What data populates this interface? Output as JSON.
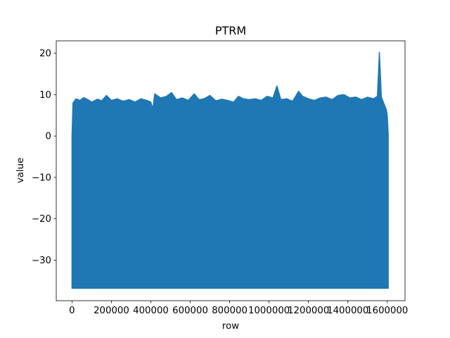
{
  "chart_data": {
    "type": "line",
    "title": "PTRM",
    "xlabel": "row",
    "ylabel": "value",
    "xlim": [
      -80000,
      1690000
    ],
    "ylim": [
      -39.8,
      23.0
    ],
    "x_ticks": [
      0,
      200000,
      400000,
      600000,
      800000,
      1000000,
      1200000,
      1400000,
      1600000
    ],
    "y_ticks": [
      -30,
      -20,
      -10,
      0,
      10,
      20
    ],
    "grid": false,
    "legend": "none",
    "series": [
      {
        "color": "#1f77b4",
        "x_range": [
          0,
          1605000
        ],
        "band_min": -36.8,
        "upper_envelope": [
          [
            0,
            0.0
          ],
          [
            5000,
            8.0
          ],
          [
            20000,
            9.0
          ],
          [
            40000,
            8.6
          ],
          [
            60000,
            9.3
          ],
          [
            80000,
            8.8
          ],
          [
            100000,
            8.2
          ],
          [
            130000,
            8.9
          ],
          [
            150000,
            8.5
          ],
          [
            175000,
            9.8
          ],
          [
            200000,
            8.6
          ],
          [
            230000,
            9.0
          ],
          [
            260000,
            8.4
          ],
          [
            290000,
            8.8
          ],
          [
            320000,
            8.2
          ],
          [
            350000,
            9.0
          ],
          [
            380000,
            8.6
          ],
          [
            400000,
            8.2
          ],
          [
            410000,
            6.5
          ],
          [
            420000,
            10.2
          ],
          [
            450000,
            9.2
          ],
          [
            480000,
            9.6
          ],
          [
            505000,
            10.5
          ],
          [
            530000,
            8.8
          ],
          [
            560000,
            9.2
          ],
          [
            590000,
            8.6
          ],
          [
            620000,
            10.2
          ],
          [
            645000,
            8.8
          ],
          [
            670000,
            9.0
          ],
          [
            700000,
            9.8
          ],
          [
            730000,
            8.5
          ],
          [
            760000,
            8.9
          ],
          [
            790000,
            8.6
          ],
          [
            820000,
            8.2
          ],
          [
            845000,
            9.6
          ],
          [
            870000,
            9.0
          ],
          [
            900000,
            8.8
          ],
          [
            930000,
            9.0
          ],
          [
            960000,
            8.6
          ],
          [
            990000,
            9.6
          ],
          [
            1020000,
            9.2
          ],
          [
            1040000,
            12.1
          ],
          [
            1060000,
            8.8
          ],
          [
            1090000,
            9.0
          ],
          [
            1120000,
            8.4
          ],
          [
            1150000,
            10.8
          ],
          [
            1170000,
            9.6
          ],
          [
            1200000,
            9.0
          ],
          [
            1230000,
            8.6
          ],
          [
            1260000,
            9.2
          ],
          [
            1290000,
            9.4
          ],
          [
            1320000,
            8.8
          ],
          [
            1350000,
            9.8
          ],
          [
            1380000,
            10.0
          ],
          [
            1410000,
            9.2
          ],
          [
            1440000,
            9.4
          ],
          [
            1470000,
            8.8
          ],
          [
            1500000,
            9.4
          ],
          [
            1530000,
            9.0
          ],
          [
            1550000,
            9.6
          ],
          [
            1560000,
            20.2
          ],
          [
            1570000,
            9.4
          ],
          [
            1585000,
            7.6
          ],
          [
            1595000,
            6.4
          ],
          [
            1600000,
            5.0
          ],
          [
            1605000,
            0.2
          ]
        ]
      }
    ]
  }
}
